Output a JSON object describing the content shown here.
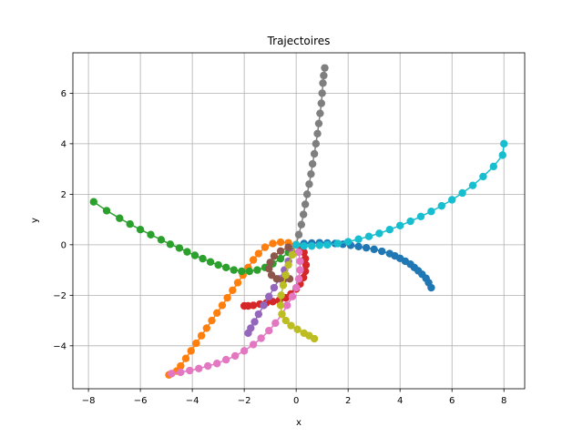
{
  "chart_data": {
    "type": "scatter",
    "title": "Trajectoires",
    "xlabel": "x",
    "ylabel": "y",
    "xlim": [
      -8.6,
      8.8
    ],
    "ylim": [
      -5.7,
      7.6
    ],
    "xticks": [
      -8,
      -6,
      -4,
      -2,
      0,
      2,
      4,
      6,
      8
    ],
    "yticks": [
      -4,
      -2,
      0,
      2,
      4,
      6
    ],
    "grid": true,
    "legend": "none",
    "series": [
      {
        "color": "#1f77b4",
        "points": [
          [
            0,
            0
          ],
          [
            0.3,
            0.05
          ],
          [
            0.6,
            0.07
          ],
          [
            0.9,
            0.08
          ],
          [
            1.2,
            0.07
          ],
          [
            1.5,
            0.05
          ],
          [
            1.8,
            0.02
          ],
          [
            2.1,
            -0.02
          ],
          [
            2.4,
            -0.07
          ],
          [
            2.7,
            -0.12
          ],
          [
            3.0,
            -0.18
          ],
          [
            3.3,
            -0.26
          ],
          [
            3.6,
            -0.35
          ],
          [
            3.8,
            -0.44
          ],
          [
            4.0,
            -0.54
          ],
          [
            4.2,
            -0.65
          ],
          [
            4.4,
            -0.77
          ],
          [
            4.55,
            -0.9
          ],
          [
            4.7,
            -1.03
          ],
          [
            4.85,
            -1.17
          ],
          [
            5.0,
            -1.33
          ],
          [
            5.1,
            -1.5
          ],
          [
            5.2,
            -1.7
          ]
        ]
      },
      {
        "color": "#ff7f0e",
        "points": [
          [
            0,
            0
          ],
          [
            -0.3,
            0.08
          ],
          [
            -0.6,
            0.1
          ],
          [
            -0.9,
            0.05
          ],
          [
            -1.2,
            -0.1
          ],
          [
            -1.45,
            -0.35
          ],
          [
            -1.65,
            -0.6
          ],
          [
            -1.85,
            -0.9
          ],
          [
            -2.05,
            -1.2
          ],
          [
            -2.25,
            -1.5
          ],
          [
            -2.45,
            -1.8
          ],
          [
            -2.65,
            -2.1
          ],
          [
            -2.85,
            -2.4
          ],
          [
            -3.05,
            -2.7
          ],
          [
            -3.25,
            -3.0
          ],
          [
            -3.45,
            -3.3
          ],
          [
            -3.65,
            -3.6
          ],
          [
            -3.85,
            -3.9
          ],
          [
            -4.05,
            -4.2
          ],
          [
            -4.25,
            -4.5
          ],
          [
            -4.45,
            -4.8
          ],
          [
            -4.6,
            -5.0
          ],
          [
            -4.9,
            -5.15
          ]
        ]
      },
      {
        "color": "#2ca02c",
        "points": [
          [
            0,
            0
          ],
          [
            -0.3,
            -0.3
          ],
          [
            -0.6,
            -0.55
          ],
          [
            -0.9,
            -0.75
          ],
          [
            -1.2,
            -0.9
          ],
          [
            -1.5,
            -1.0
          ],
          [
            -1.8,
            -1.05
          ],
          [
            -2.1,
            -1.05
          ],
          [
            -2.4,
            -1.0
          ],
          [
            -2.7,
            -0.9
          ],
          [
            -3.0,
            -0.8
          ],
          [
            -3.3,
            -0.68
          ],
          [
            -3.6,
            -0.55
          ],
          [
            -3.9,
            -0.42
          ],
          [
            -4.2,
            -0.28
          ],
          [
            -4.5,
            -0.13
          ],
          [
            -4.85,
            0.02
          ],
          [
            -5.2,
            0.2
          ],
          [
            -5.6,
            0.4
          ],
          [
            -6.0,
            0.6
          ],
          [
            -6.4,
            0.82
          ],
          [
            -6.8,
            1.05
          ],
          [
            -7.3,
            1.35
          ],
          [
            -7.8,
            1.7
          ]
        ]
      },
      {
        "color": "#d62728",
        "points": [
          [
            0,
            0
          ],
          [
            0.2,
            -0.1
          ],
          [
            0.3,
            -0.3
          ],
          [
            0.35,
            -0.55
          ],
          [
            0.38,
            -0.8
          ],
          [
            0.35,
            -1.05
          ],
          [
            0.28,
            -1.3
          ],
          [
            0.15,
            -1.55
          ],
          [
            0.0,
            -1.75
          ],
          [
            -0.2,
            -1.95
          ],
          [
            -0.4,
            -2.1
          ],
          [
            -0.65,
            -2.2
          ],
          [
            -0.9,
            -2.25
          ],
          [
            -1.15,
            -2.3
          ],
          [
            -1.4,
            -2.35
          ],
          [
            -1.65,
            -2.4
          ],
          [
            -1.85,
            -2.42
          ],
          [
            -2.0,
            -2.42
          ]
        ]
      },
      {
        "color": "#9467bd",
        "points": [
          [
            0,
            0
          ],
          [
            -0.15,
            -0.3
          ],
          [
            -0.3,
            -0.65
          ],
          [
            -0.45,
            -1.0
          ],
          [
            -0.65,
            -1.35
          ],
          [
            -0.85,
            -1.7
          ],
          [
            -1.05,
            -2.05
          ],
          [
            -1.25,
            -2.4
          ],
          [
            -1.45,
            -2.75
          ],
          [
            -1.6,
            -3.05
          ],
          [
            -1.75,
            -3.3
          ],
          [
            -1.85,
            -3.5
          ]
        ]
      },
      {
        "color": "#8c564b",
        "points": [
          [
            0,
            0
          ],
          [
            -0.3,
            -0.1
          ],
          [
            -0.6,
            -0.25
          ],
          [
            -0.85,
            -0.45
          ],
          [
            -1.0,
            -0.7
          ],
          [
            -1.05,
            -0.95
          ],
          [
            -0.95,
            -1.2
          ],
          [
            -0.75,
            -1.35
          ],
          [
            -0.5,
            -1.4
          ],
          [
            -0.25,
            -1.35
          ]
        ]
      },
      {
        "color": "#e377c2",
        "points": [
          [
            0,
            0
          ],
          [
            0.1,
            -0.3
          ],
          [
            0.15,
            -0.65
          ],
          [
            0.15,
            -1.0
          ],
          [
            0.1,
            -1.35
          ],
          [
            0.0,
            -1.7
          ],
          [
            -0.15,
            -2.05
          ],
          [
            -0.35,
            -2.4
          ],
          [
            -0.55,
            -2.75
          ],
          [
            -0.8,
            -3.1
          ],
          [
            -1.05,
            -3.4
          ],
          [
            -1.35,
            -3.7
          ],
          [
            -1.65,
            -3.95
          ],
          [
            -2.0,
            -4.2
          ],
          [
            -2.35,
            -4.4
          ],
          [
            -2.7,
            -4.55
          ],
          [
            -3.05,
            -4.7
          ],
          [
            -3.4,
            -4.8
          ],
          [
            -3.75,
            -4.9
          ],
          [
            -4.1,
            -4.98
          ],
          [
            -4.45,
            -5.05
          ],
          [
            -4.8,
            -5.1
          ]
        ]
      },
      {
        "color": "#7f7f7f",
        "points": [
          [
            0,
            0
          ],
          [
            0.1,
            0.4
          ],
          [
            0.2,
            0.8
          ],
          [
            0.28,
            1.2
          ],
          [
            0.35,
            1.6
          ],
          [
            0.42,
            2.0
          ],
          [
            0.5,
            2.4
          ],
          [
            0.57,
            2.8
          ],
          [
            0.63,
            3.2
          ],
          [
            0.7,
            3.6
          ],
          [
            0.76,
            4.0
          ],
          [
            0.82,
            4.4
          ],
          [
            0.87,
            4.8
          ],
          [
            0.92,
            5.2
          ],
          [
            0.97,
            5.6
          ],
          [
            1.0,
            6.0
          ],
          [
            1.03,
            6.4
          ],
          [
            1.06,
            6.7
          ],
          [
            1.1,
            7.0
          ]
        ]
      },
      {
        "color": "#bcbd22",
        "points": [
          [
            0,
            0
          ],
          [
            -0.15,
            -0.4
          ],
          [
            -0.3,
            -0.8
          ],
          [
            -0.4,
            -1.2
          ],
          [
            -0.5,
            -1.6
          ],
          [
            -0.58,
            -2.0
          ],
          [
            -0.6,
            -2.4
          ],
          [
            -0.55,
            -2.75
          ],
          [
            -0.4,
            -3.0
          ],
          [
            -0.2,
            -3.2
          ],
          [
            0.05,
            -3.35
          ],
          [
            0.3,
            -3.5
          ],
          [
            0.5,
            -3.6
          ],
          [
            0.7,
            -3.72
          ]
        ]
      },
      {
        "color": "#17becf",
        "points": [
          [
            0,
            0
          ],
          [
            0.3,
            -0.05
          ],
          [
            0.6,
            -0.05
          ],
          [
            0.9,
            -0.02
          ],
          [
            1.2,
            0.0
          ],
          [
            1.6,
            0.05
          ],
          [
            2.0,
            0.12
          ],
          [
            2.4,
            0.22
          ],
          [
            2.8,
            0.33
          ],
          [
            3.2,
            0.45
          ],
          [
            3.6,
            0.6
          ],
          [
            4.0,
            0.76
          ],
          [
            4.4,
            0.93
          ],
          [
            4.8,
            1.12
          ],
          [
            5.2,
            1.32
          ],
          [
            5.6,
            1.54
          ],
          [
            6.0,
            1.78
          ],
          [
            6.4,
            2.05
          ],
          [
            6.8,
            2.35
          ],
          [
            7.2,
            2.7
          ],
          [
            7.6,
            3.1
          ],
          [
            7.95,
            3.55
          ],
          [
            8.0,
            4.0
          ]
        ]
      }
    ]
  }
}
